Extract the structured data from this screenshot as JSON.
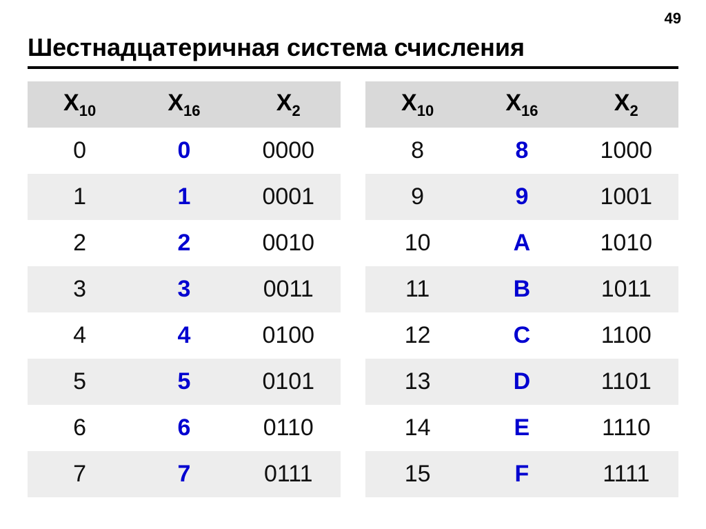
{
  "page_number": "49",
  "title": "Шестнадцатеричная система счисления",
  "colors": {
    "header_bg": "#d9d9d9",
    "stripe_bg": "#ededed",
    "hex_text": "#0000d0",
    "text": "#101010",
    "title_rule": "#000000",
    "background": "#ffffff"
  },
  "columns": {
    "dec_base": "X",
    "dec_sub": "10",
    "hex_base": "X",
    "hex_sub": "16",
    "bin_base": "X",
    "bin_sub": "2"
  },
  "left_rows": [
    {
      "dec": "0",
      "hex": "0",
      "bin": "0000",
      "stripe": false
    },
    {
      "dec": "1",
      "hex": "1",
      "bin": "0001",
      "stripe": true
    },
    {
      "dec": "2",
      "hex": "2",
      "bin": "0010",
      "stripe": false
    },
    {
      "dec": "3",
      "hex": "3",
      "bin": "0011",
      "stripe": true
    },
    {
      "dec": "4",
      "hex": "4",
      "bin": "0100",
      "stripe": false
    },
    {
      "dec": "5",
      "hex": "5",
      "bin": "0101",
      "stripe": true
    },
    {
      "dec": "6",
      "hex": "6",
      "bin": "0110",
      "stripe": false
    },
    {
      "dec": "7",
      "hex": "7",
      "bin": "0111",
      "stripe": true
    }
  ],
  "right_rows": [
    {
      "dec": "8",
      "hex": "8",
      "bin": "1000",
      "stripe": false
    },
    {
      "dec": "9",
      "hex": "9",
      "bin": "1001",
      "stripe": true
    },
    {
      "dec": "10",
      "hex": "A",
      "bin": "1010",
      "stripe": false
    },
    {
      "dec": "11",
      "hex": "B",
      "bin": "1011",
      "stripe": true
    },
    {
      "dec": "12",
      "hex": "C",
      "bin": "1100",
      "stripe": false
    },
    {
      "dec": "13",
      "hex": "D",
      "bin": "1101",
      "stripe": true
    },
    {
      "dec": "14",
      "hex": "E",
      "bin": "1110",
      "stripe": false
    },
    {
      "dec": "15",
      "hex": "F",
      "bin": "1111",
      "stripe": true
    }
  ]
}
